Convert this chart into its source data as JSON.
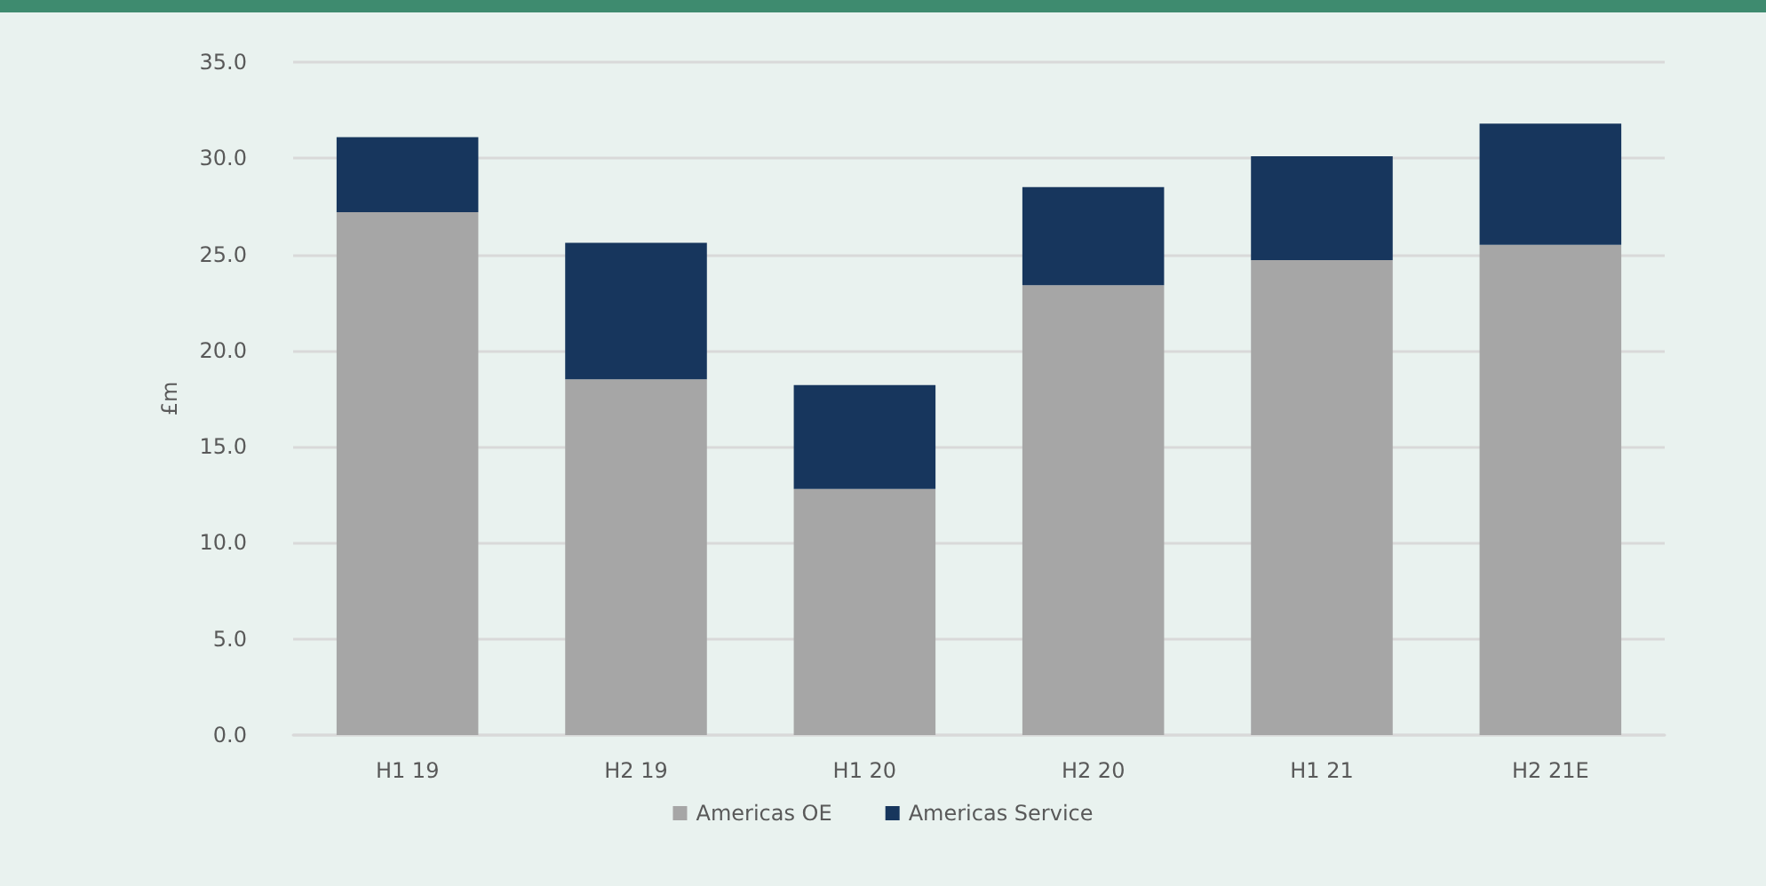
{
  "chart_data": {
    "type": "bar",
    "stacked": true,
    "ylabel": "£m",
    "categories": [
      "H1 19",
      "H2 19",
      "H1 20",
      "H2 20",
      "H1 21",
      "H2 21E"
    ],
    "series": [
      {
        "name": "Americas OE",
        "color": "#a6a6a6",
        "values": [
          27.2,
          18.5,
          12.8,
          23.4,
          24.7,
          25.5
        ]
      },
      {
        "name": "Americas Service",
        "color": "#17365d",
        "values": [
          3.9,
          7.1,
          5.4,
          5.1,
          5.4,
          6.3
        ]
      }
    ],
    "ylim": [
      0,
      35
    ],
    "yticks": [
      {
        "value": 0,
        "label": "0.0"
      },
      {
        "value": 5,
        "label": "5.0"
      },
      {
        "value": 10,
        "label": "10.0"
      },
      {
        "value": 15,
        "label": "15.0"
      },
      {
        "value": 20,
        "label": "20.0"
      },
      {
        "value": 25,
        "label": "25.0"
      },
      {
        "value": 30,
        "label": "30.0"
      },
      {
        "value": 35,
        "label": "35.0"
      }
    ],
    "grid": "y",
    "legend": "bottom"
  }
}
